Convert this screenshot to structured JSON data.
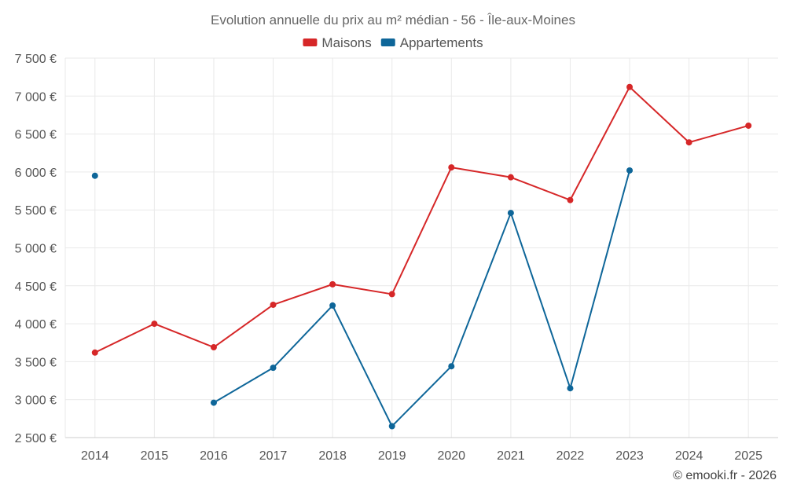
{
  "chart_data": {
    "type": "line",
    "title": "Evolution annuelle du prix au m² médian - 56 - Île-aux-Moines",
    "categories": [
      "2014",
      "2015",
      "2016",
      "2017",
      "2018",
      "2019",
      "2020",
      "2021",
      "2022",
      "2023",
      "2024",
      "2025"
    ],
    "series": [
      {
        "name": "Maisons",
        "color": "#d62728",
        "values": [
          3620,
          4000,
          3690,
          4250,
          4520,
          4390,
          6060,
          5930,
          5630,
          7120,
          6390,
          6610
        ]
      },
      {
        "name": "Appartements",
        "color": "#0e6699",
        "values": [
          5950,
          null,
          2960,
          3420,
          4240,
          2650,
          3440,
          5460,
          3150,
          6020,
          null,
          null
        ]
      }
    ],
    "y_ticks": [
      "2 500 €",
      "3 000 €",
      "3 500 €",
      "4 000 €",
      "4 500 €",
      "5 000 €",
      "5 500 €",
      "6 000 €",
      "6 500 €",
      "7 000 €",
      "7 500 €"
    ],
    "y_tick_values": [
      2500,
      3000,
      3500,
      4000,
      4500,
      5000,
      5500,
      6000,
      6500,
      7000,
      7500
    ],
    "ylim": [
      2500,
      7500
    ],
    "xlabel": "",
    "ylabel": "",
    "grid": true,
    "legend_position": "top-center"
  },
  "credit": "© emooki.fr - 2026"
}
